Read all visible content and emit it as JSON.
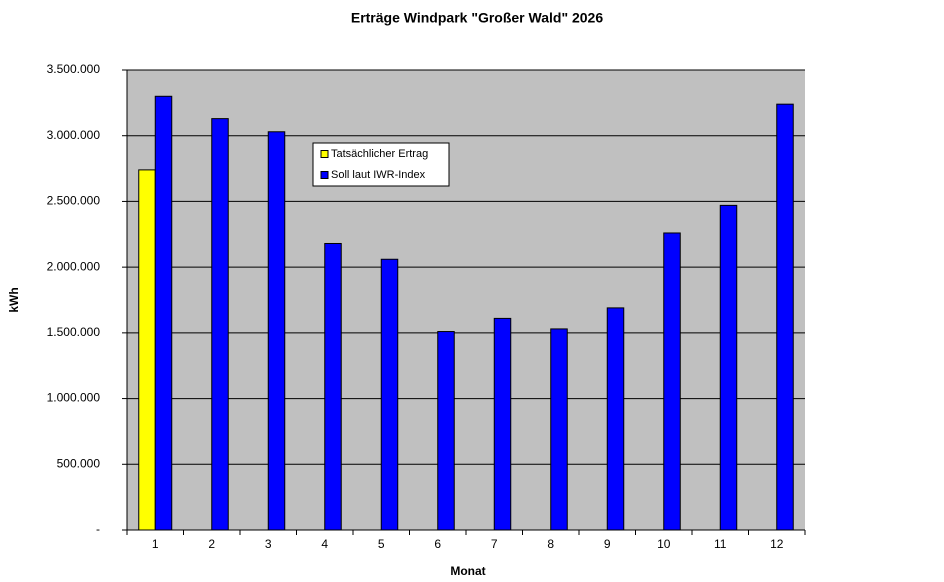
{
  "chart_data": {
    "type": "bar",
    "title": "Erträge Windpark \"Großer Wald\" 2026",
    "x_label": "Monat",
    "y_label": "kWh",
    "categories": [
      "1",
      "2",
      "3",
      "4",
      "5",
      "6",
      "7",
      "8",
      "9",
      "10",
      "11",
      "12"
    ],
    "series": [
      {
        "name": "Tatsächlicher Ertrag",
        "color": "#ffff00",
        "values": [
          2740000,
          null,
          null,
          null,
          null,
          null,
          null,
          null,
          null,
          null,
          null,
          null
        ]
      },
      {
        "name": "Soll laut IWR-Index",
        "color": "#0000ff",
        "values": [
          3300000,
          3130000,
          3030000,
          2180000,
          2060000,
          1510000,
          1610000,
          1530000,
          1690000,
          2260000,
          2470000,
          3240000
        ]
      }
    ],
    "ylim": [
      0,
      3500000
    ],
    "yticks": [
      {
        "value": 0,
        "label": "-"
      },
      {
        "value": 500000,
        "label": "500.000"
      },
      {
        "value": 1000000,
        "label": "1.000.000"
      },
      {
        "value": 1500000,
        "label": "1.500.000"
      },
      {
        "value": 2000000,
        "label": "2.000.000"
      },
      {
        "value": 2500000,
        "label": "2.500.000"
      },
      {
        "value": 3000000,
        "label": "3.000.000"
      },
      {
        "value": 3500000,
        "label": "3.500.000"
      }
    ],
    "grid": true,
    "legend": "upper center",
    "plot_background": "#c0c0c0"
  }
}
